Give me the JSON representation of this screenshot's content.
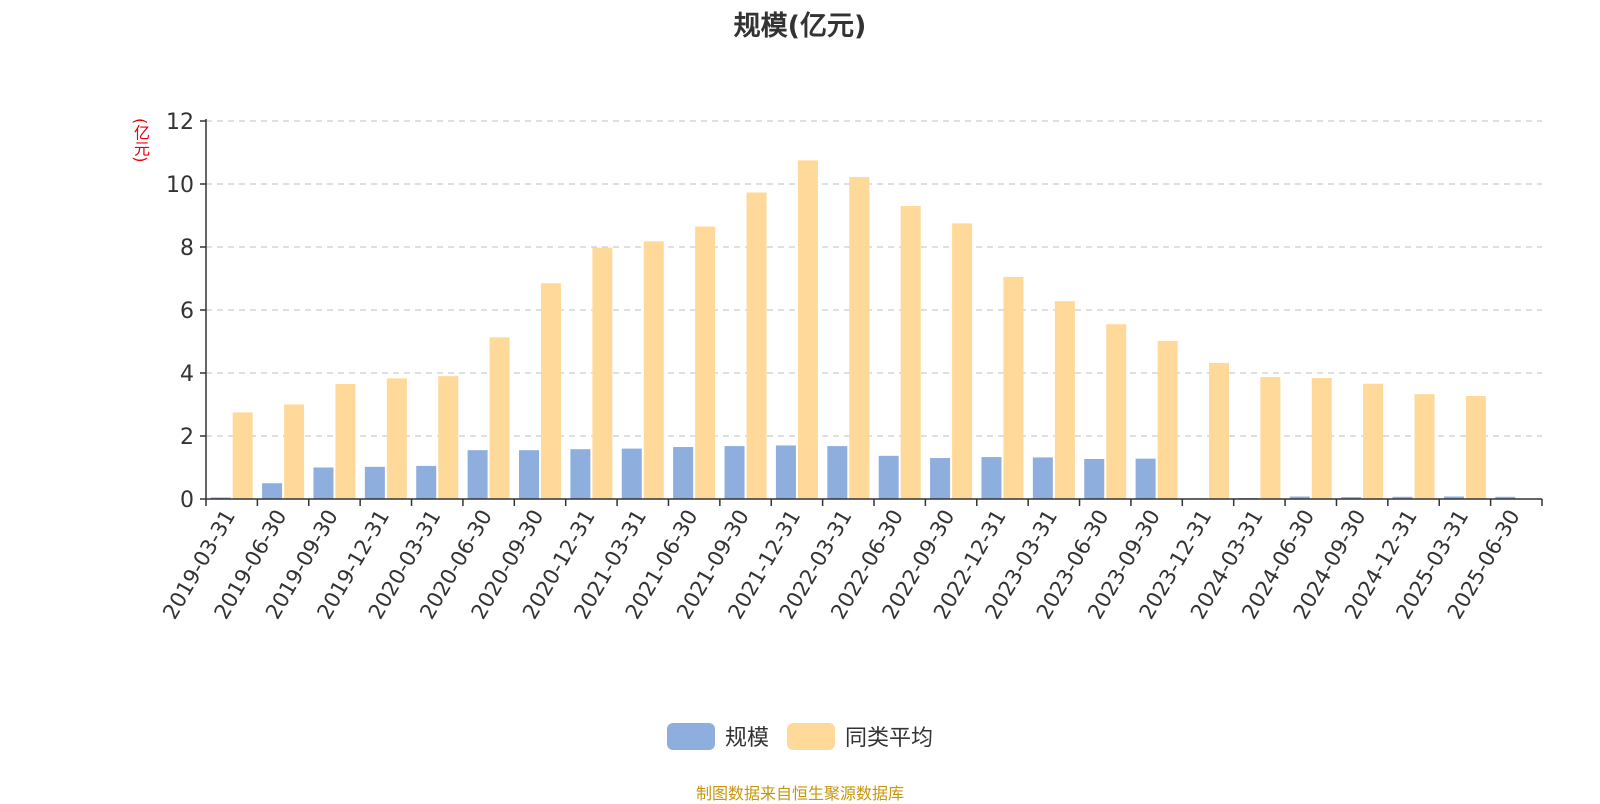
{
  "chart_data": {
    "type": "bar",
    "title": "规模(亿元)",
    "ylabel": "(亿元)",
    "ylim": [
      0,
      12
    ],
    "yticks": [
      0,
      2,
      4,
      6,
      8,
      10,
      12
    ],
    "grid": true,
    "legend_position": "bottom",
    "categories": [
      "2019-03-31",
      "2019-06-30",
      "2019-09-30",
      "2019-12-31",
      "2020-03-31",
      "2020-06-30",
      "2020-09-30",
      "2020-12-31",
      "2021-03-31",
      "2021-06-30",
      "2021-09-30",
      "2021-12-31",
      "2022-03-31",
      "2022-06-30",
      "2022-09-30",
      "2022-12-31",
      "2023-03-31",
      "2023-06-30",
      "2023-09-30",
      "2023-12-31",
      "2024-03-31",
      "2024-06-30",
      "2024-09-30",
      "2024-12-31",
      "2025-03-31",
      "2025-06-30"
    ],
    "series": [
      {
        "name": "规模",
        "color": "#8eaedd",
        "values": [
          0.05,
          0.5,
          1.0,
          1.02,
          1.05,
          1.55,
          1.55,
          1.58,
          1.6,
          1.65,
          1.68,
          1.7,
          1.68,
          1.37,
          1.3,
          1.33,
          1.32,
          1.27,
          1.28,
          0.02,
          0.03,
          0.08,
          0.06,
          0.07,
          0.08,
          0.07
        ]
      },
      {
        "name": "同类平均",
        "color": "#ffd99a",
        "values": [
          2.75,
          3.0,
          3.65,
          3.83,
          3.9,
          5.13,
          6.85,
          7.98,
          8.18,
          8.65,
          9.73,
          10.75,
          10.22,
          9.3,
          8.75,
          7.05,
          6.28,
          5.55,
          5.02,
          4.32,
          3.87,
          3.84,
          3.66,
          3.33,
          3.27,
          null
        ]
      }
    ]
  },
  "legend": {
    "items": [
      "规模",
      "同类平均"
    ]
  },
  "source_text": "制图数据来自恒生聚源数据库"
}
